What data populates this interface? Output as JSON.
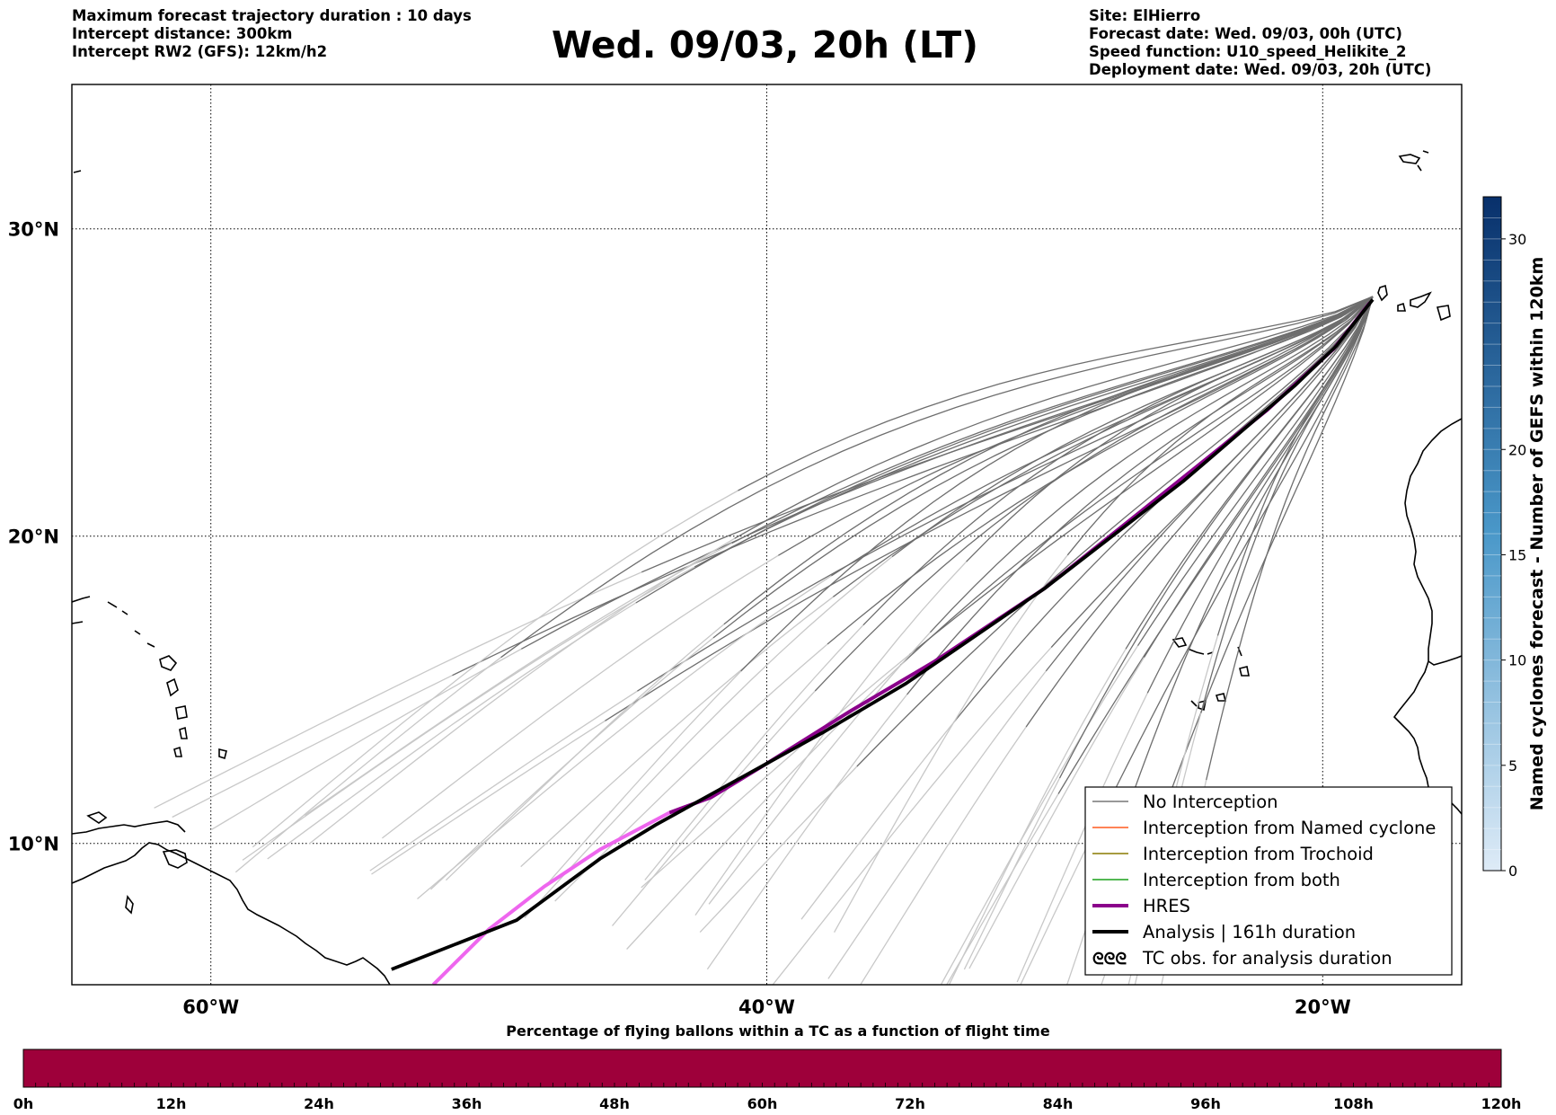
{
  "header": {
    "left_lines": [
      "Maximum forecast trajectory duration : 10 days",
      "Intercept distance: 300km",
      "Intercept RW2 (GFS):  12km/h2"
    ],
    "title": "Wed. 09/03, 20h (LT)",
    "right_lines": [
      "Site: ElHierro",
      "Forecast date: Wed. 09/03, 00h (UTC)",
      "Speed function: U10_speed_Helikite_2",
      "Deployment date: Wed. 09/03, 20h (UTC)"
    ]
  },
  "map": {
    "lon_range": [
      -65,
      -15
    ],
    "lat_range": [
      5.4,
      34.7
    ],
    "lat_labels": [
      {
        "lat": 30,
        "text": "30°N"
      },
      {
        "lat": 20,
        "text": "20°N"
      },
      {
        "lat": 10,
        "text": "10°N"
      }
    ],
    "lon_labels": [
      {
        "lon": -60,
        "text": "60°W"
      },
      {
        "lon": -40,
        "text": "40°W"
      },
      {
        "lon": -20,
        "text": "20°W"
      }
    ],
    "grid": true,
    "site": {
      "lon": -18.2,
      "lat": 27.8
    }
  },
  "legend": {
    "placement": "lower-right",
    "items": [
      {
        "label": "No Interception",
        "color": "#777777"
      },
      {
        "label": "Interception from Named cyclone",
        "color": "#ff5a1f"
      },
      {
        "label": "Interception from Trochoid",
        "color": "#8a7a00"
      },
      {
        "label": "Interception from both",
        "color": "#1aa01a"
      },
      {
        "label": "HRES",
        "color": "#8b008b"
      },
      {
        "label": "Analysis | 161h duration",
        "color": "#000000"
      },
      {
        "label": "TC obs. for analysis duration",
        "color": "#000000"
      }
    ],
    "tc_symbol": "ᘓᘓᘓ"
  },
  "colorbar_right": {
    "label": "Named cyclones forecast - Number of GEFS within 120km",
    "ticks": [
      0,
      5,
      10,
      15,
      20,
      30
    ],
    "range": [
      0,
      32
    ],
    "color_low": "#deebf7",
    "color_high": "#08306b"
  },
  "colorbar_bottom": {
    "title": "Percentage of flying ballons within a TC as a function of flight time",
    "ticks": [
      "0h",
      "12h",
      "24h",
      "36h",
      "48h",
      "60h",
      "72h",
      "84h",
      "96h",
      "108h",
      "120h"
    ],
    "fill_color": "#9e003a"
  },
  "trajectories": {
    "analysis": [
      [
        -18.2,
        27.7
      ],
      [
        -19.5,
        26.2
      ],
      [
        -21,
        24.9
      ],
      [
        -25,
        21.8
      ],
      [
        -30,
        18.3
      ],
      [
        -35,
        15.2
      ],
      [
        -38,
        13.6
      ],
      [
        -40,
        12.6
      ],
      [
        -42,
        11.6
      ],
      [
        -44,
        10.6
      ],
      [
        -46,
        9.5
      ],
      [
        -49,
        7.5
      ],
      [
        -53.5,
        5.9
      ]
    ],
    "hres_dark": [
      [
        -18.3,
        27.6
      ],
      [
        -19.6,
        26.1
      ],
      [
        -22,
        24.1
      ],
      [
        -26,
        21.2
      ],
      [
        -30,
        18.3
      ],
      [
        -34,
        15.9
      ],
      [
        -37,
        14.3
      ],
      [
        -40,
        12.6
      ],
      [
        -42,
        11.5
      ],
      [
        -43.5,
        11.0
      ]
    ],
    "hres_light": [
      [
        -43.5,
        11.0
      ],
      [
        -46,
        9.8
      ],
      [
        -48,
        8.6
      ],
      [
        -50,
        7.2
      ],
      [
        -52,
        5.4
      ]
    ]
  }
}
